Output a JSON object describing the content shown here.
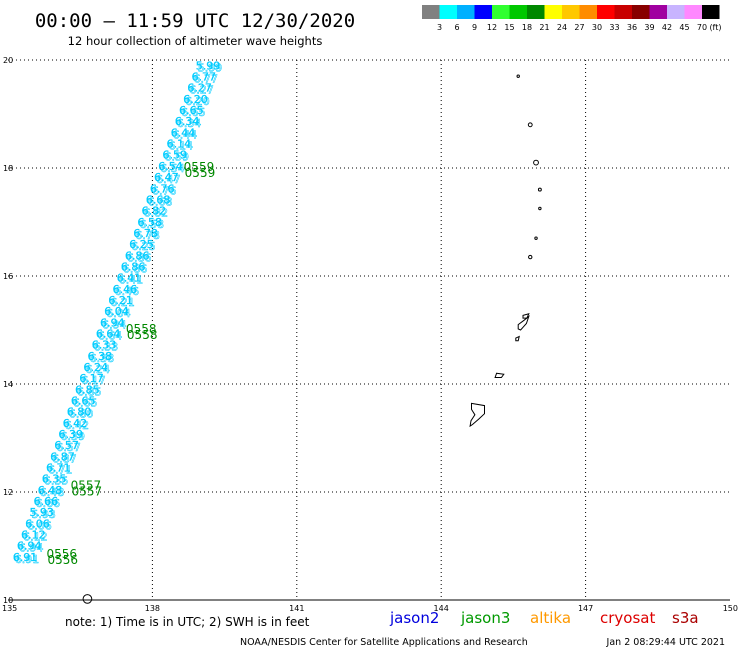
{
  "header": {
    "title": "00:00 – 11:59 UTC 12/30/2020",
    "subtitle": "12 hour collection of altimeter wave heights"
  },
  "legend": {
    "colors": [
      "#808080",
      "#00ffff",
      "#00b0ff",
      "#0000ff",
      "#30ff30",
      "#00c800",
      "#008800",
      "#ffff00",
      "#ffc800",
      "#ff8c00",
      "#ff0000",
      "#c80000",
      "#880000",
      "#a000a0",
      "#c8b4ff",
      "#ff88ff",
      "#000000"
    ],
    "labels": [
      "3",
      "6",
      "9",
      "12",
      "15",
      "18",
      "21",
      "24",
      "27",
      "30",
      "33",
      "36",
      "39",
      "42",
      "45",
      "70"
    ],
    "unit": "(ft)"
  },
  "chart_data": {
    "type": "scatter",
    "xlim": [
      135,
      150
    ],
    "ylim": [
      10,
      20
    ],
    "xticks": [
      "135",
      "138",
      "141",
      "144",
      "147",
      "150"
    ],
    "yticks": [
      "10",
      "12",
      "14",
      "16",
      "18",
      "20"
    ],
    "grid": true,
    "track": {
      "color": "#00ccff",
      "labels": [
        "6.91",
        "6.94",
        "6.12",
        "6.06",
        "5.93",
        "6.66",
        "6.48",
        "6.35",
        "6.71",
        "6.87",
        "6.57",
        "6.39",
        "6.42",
        "6.80",
        "6.65",
        "6.85",
        "6.17",
        "6.24",
        "6.38",
        "6.33",
        "6.64",
        "6.94",
        "6.04",
        "6.21",
        "6.46",
        "6.41",
        "6.86",
        "6.86",
        "6.25",
        "6.78",
        "6.58",
        "6.82",
        "6.68",
        "6.76",
        "6.47",
        "6.54",
        "6.59",
        "6.14",
        "6.44",
        "6.34",
        "6.65",
        "6.20",
        "6.27",
        "6.77",
        "5.99"
      ],
      "start": {
        "lon": 135.1,
        "lat": 10.8
      },
      "end": {
        "lon": 138.9,
        "lat": 19.9
      }
    },
    "times": [
      {
        "text": "0556",
        "lon": 135.8,
        "lat": 10.83
      },
      {
        "text": "0557",
        "lon": 136.3,
        "lat": 12.1
      },
      {
        "text": "0558",
        "lon": 137.45,
        "lat": 15.0
      },
      {
        "text": "0559",
        "lon": 138.65,
        "lat": 18.0
      }
    ],
    "time_color": "#008800"
  },
  "coastline": {
    "color": "#000000",
    "islands": [
      {
        "lon": 145.6,
        "lat": 19.7,
        "r": 0.025
      },
      {
        "lon": 145.85,
        "lat": 18.8,
        "r": 0.04
      },
      {
        "lon": 145.97,
        "lat": 18.1,
        "r": 0.05
      },
      {
        "lon": 146.05,
        "lat": 17.6,
        "r": 0.03
      },
      {
        "lon": 146.05,
        "lat": 17.25,
        "r": 0.025
      },
      {
        "lon": 145.97,
        "lat": 16.7,
        "r": 0.025
      },
      {
        "lon": 145.85,
        "lat": 16.35,
        "r": 0.035
      },
      {
        "lon": 136.65,
        "lat": 10.02,
        "r": 0.09
      }
    ],
    "polygons": [
      [
        [
          144.63,
          13.64
        ],
        [
          144.9,
          13.6
        ],
        [
          144.9,
          13.45
        ],
        [
          144.78,
          13.35
        ],
        [
          144.65,
          13.25
        ],
        [
          144.6,
          13.22
        ],
        [
          144.62,
          13.32
        ],
        [
          144.7,
          13.43
        ],
        [
          144.63,
          13.53
        ]
      ],
      [
        [
          145.15,
          14.2
        ],
        [
          145.3,
          14.18
        ],
        [
          145.25,
          14.12
        ],
        [
          145.12,
          14.12
        ]
      ],
      [
        [
          145.6,
          15.1
        ],
        [
          145.72,
          15.18
        ],
        [
          145.82,
          15.25
        ],
        [
          145.77,
          15.12
        ],
        [
          145.7,
          15.05
        ],
        [
          145.65,
          15.0
        ],
        [
          145.6,
          15.02
        ]
      ],
      [
        [
          145.7,
          15.27
        ],
        [
          145.82,
          15.3
        ],
        [
          145.78,
          15.22
        ],
        [
          145.7,
          15.22
        ]
      ],
      [
        [
          145.55,
          14.85
        ],
        [
          145.62,
          14.88
        ],
        [
          145.6,
          14.8
        ],
        [
          145.55,
          14.8
        ]
      ]
    ]
  },
  "sats": [
    {
      "name": "jason2",
      "color": "#0000dd"
    },
    {
      "name": "jason3",
      "color": "#009900"
    },
    {
      "name": "altika",
      "color": "#ff9900"
    },
    {
      "name": "cryosat",
      "color": "#dd0000"
    },
    {
      "name": "s3a",
      "color": "#aa0000"
    }
  ],
  "footer": {
    "note": "note: 1) Time is in UTC; 2) SWH is in feet",
    "credit": "NOAA/NESDIS Center for Satellite Applications and Research",
    "generated": "Jan  2 08:29:44 UTC 2021"
  }
}
